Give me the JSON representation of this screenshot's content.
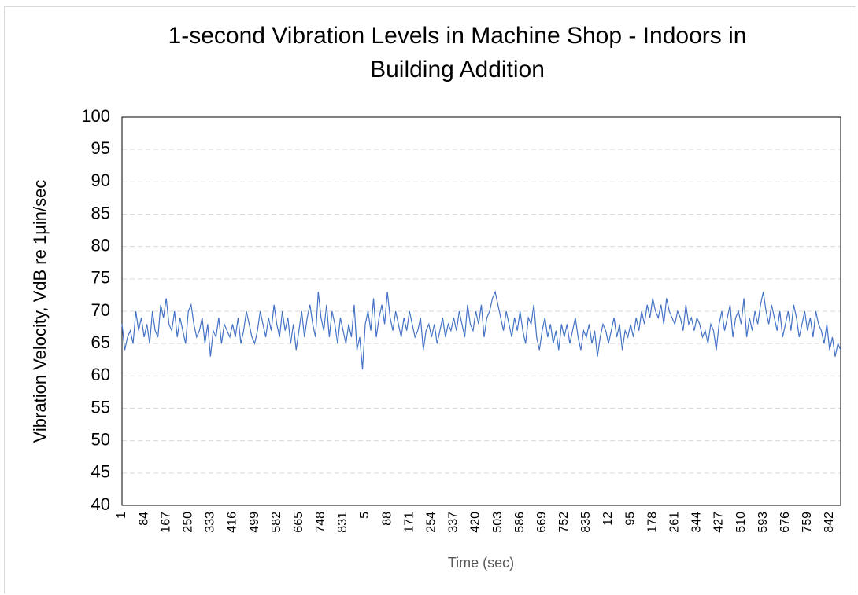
{
  "chart_data": {
    "type": "line",
    "title": [
      "1-second Vibration Levels in Machine Shop - Indoors in",
      "Building Addition"
    ],
    "x_label": "Time (sec)",
    "y_label": "Vibration Velocity, VdB re 1µin/sec",
    "ylim": [
      40,
      100
    ],
    "yticks": [
      40,
      45,
      50,
      55,
      60,
      65,
      70,
      75,
      80,
      85,
      90,
      95,
      100
    ],
    "grid": true,
    "categories": [
      "1",
      null,
      null,
      null,
      null,
      null,
      null,
      null,
      "84",
      null,
      null,
      null,
      null,
      null,
      null,
      null,
      "167",
      null,
      null,
      null,
      null,
      null,
      null,
      null,
      "250",
      null,
      null,
      null,
      null,
      null,
      null,
      null,
      "333",
      null,
      null,
      null,
      null,
      null,
      null,
      null,
      "416",
      null,
      null,
      null,
      null,
      null,
      null,
      null,
      "499",
      null,
      null,
      null,
      null,
      null,
      null,
      null,
      "582",
      null,
      null,
      null,
      null,
      null,
      null,
      null,
      "665",
      null,
      null,
      null,
      null,
      null,
      null,
      null,
      "748",
      null,
      null,
      null,
      null,
      null,
      null,
      null,
      "831",
      null,
      null,
      null,
      null,
      null,
      null,
      null,
      "5",
      null,
      null,
      null,
      null,
      null,
      null,
      null,
      "88",
      null,
      null,
      null,
      null,
      null,
      null,
      null,
      "171",
      null,
      null,
      null,
      null,
      null,
      null,
      null,
      "254",
      null,
      null,
      null,
      null,
      null,
      null,
      null,
      "337",
      null,
      null,
      null,
      null,
      null,
      null,
      null,
      "420",
      null,
      null,
      null,
      null,
      null,
      null,
      null,
      "503",
      null,
      null,
      null,
      null,
      null,
      null,
      null,
      "586",
      null,
      null,
      null,
      null,
      null,
      null,
      null,
      "669",
      null,
      null,
      null,
      null,
      null,
      null,
      null,
      "752",
      null,
      null,
      null,
      null,
      null,
      null,
      null,
      "835",
      null,
      null,
      null,
      null,
      null,
      null,
      null,
      "12",
      null,
      null,
      null,
      null,
      null,
      null,
      null,
      "95",
      null,
      null,
      null,
      null,
      null,
      null,
      null,
      "178",
      null,
      null,
      null,
      null,
      null,
      null,
      null,
      "261",
      null,
      null,
      null,
      null,
      null,
      null,
      null,
      "344",
      null,
      null,
      null,
      null,
      null,
      null,
      null,
      "427",
      null,
      null,
      null,
      null,
      null,
      null,
      null,
      "510",
      null,
      null,
      null,
      null,
      null,
      null,
      null,
      "593",
      null,
      null,
      null,
      null,
      null,
      null,
      null,
      "676",
      null,
      null,
      null,
      null,
      null,
      null,
      null,
      "759",
      null,
      null,
      null,
      null,
      null,
      null,
      null,
      "842",
      null,
      null,
      null,
      null
    ],
    "series": [
      {
        "name": "Vibration",
        "color": "#4472c4",
        "values": [
          68,
          64,
          66,
          67,
          65,
          70,
          67,
          69,
          66,
          68,
          65,
          70,
          67,
          66,
          71,
          69,
          72,
          68,
          67,
          70,
          66,
          69,
          67,
          65,
          70,
          71,
          68,
          66,
          67,
          69,
          65,
          68,
          63,
          67,
          66,
          69,
          65,
          68,
          67,
          66,
          68,
          66,
          69,
          65,
          67,
          70,
          68,
          66,
          65,
          67,
          70,
          68,
          66,
          69,
          67,
          71,
          68,
          66,
          70,
          67,
          69,
          65,
          68,
          64,
          67,
          70,
          66,
          69,
          71,
          68,
          66,
          73,
          69,
          67,
          71,
          66,
          70,
          68,
          65,
          69,
          67,
          65,
          68,
          66,
          71,
          64,
          66,
          61,
          68,
          70,
          67,
          72,
          66,
          69,
          71,
          68,
          73,
          69,
          67,
          70,
          68,
          66,
          69,
          67,
          70,
          68,
          66,
          67,
          69,
          64,
          67,
          68,
          66,
          68,
          65,
          67,
          69,
          66,
          68,
          67,
          69,
          67,
          70,
          68,
          66,
          71,
          68,
          67,
          70,
          68,
          71,
          66,
          69,
          70,
          72,
          73,
          71,
          69,
          67,
          70,
          68,
          66,
          69,
          67,
          70,
          67,
          65,
          69,
          68,
          71,
          66,
          64,
          67,
          69,
          66,
          68,
          65,
          67,
          64,
          68,
          66,
          68,
          65,
          67,
          69,
          66,
          64,
          67,
          66,
          68,
          65,
          67,
          63,
          66,
          68,
          67,
          65,
          67,
          69,
          66,
          68,
          64,
          67,
          66,
          68,
          66,
          69,
          67,
          70,
          68,
          71,
          69,
          72,
          70,
          69,
          71,
          68,
          72,
          70,
          69,
          68,
          70,
          69,
          67,
          71,
          68,
          69,
          67,
          69,
          68,
          66,
          67,
          65,
          68,
          67,
          64,
          68,
          70,
          67,
          69,
          71,
          66,
          69,
          70,
          68,
          72,
          66,
          69,
          67,
          70,
          68,
          71,
          73,
          70,
          68,
          71,
          69,
          67,
          70,
          66,
          68,
          70,
          67,
          71,
          69,
          66,
          68,
          70,
          67,
          69,
          66,
          70,
          68,
          67,
          65,
          68,
          64,
          66,
          63,
          65,
          64
        ]
      }
    ]
  }
}
